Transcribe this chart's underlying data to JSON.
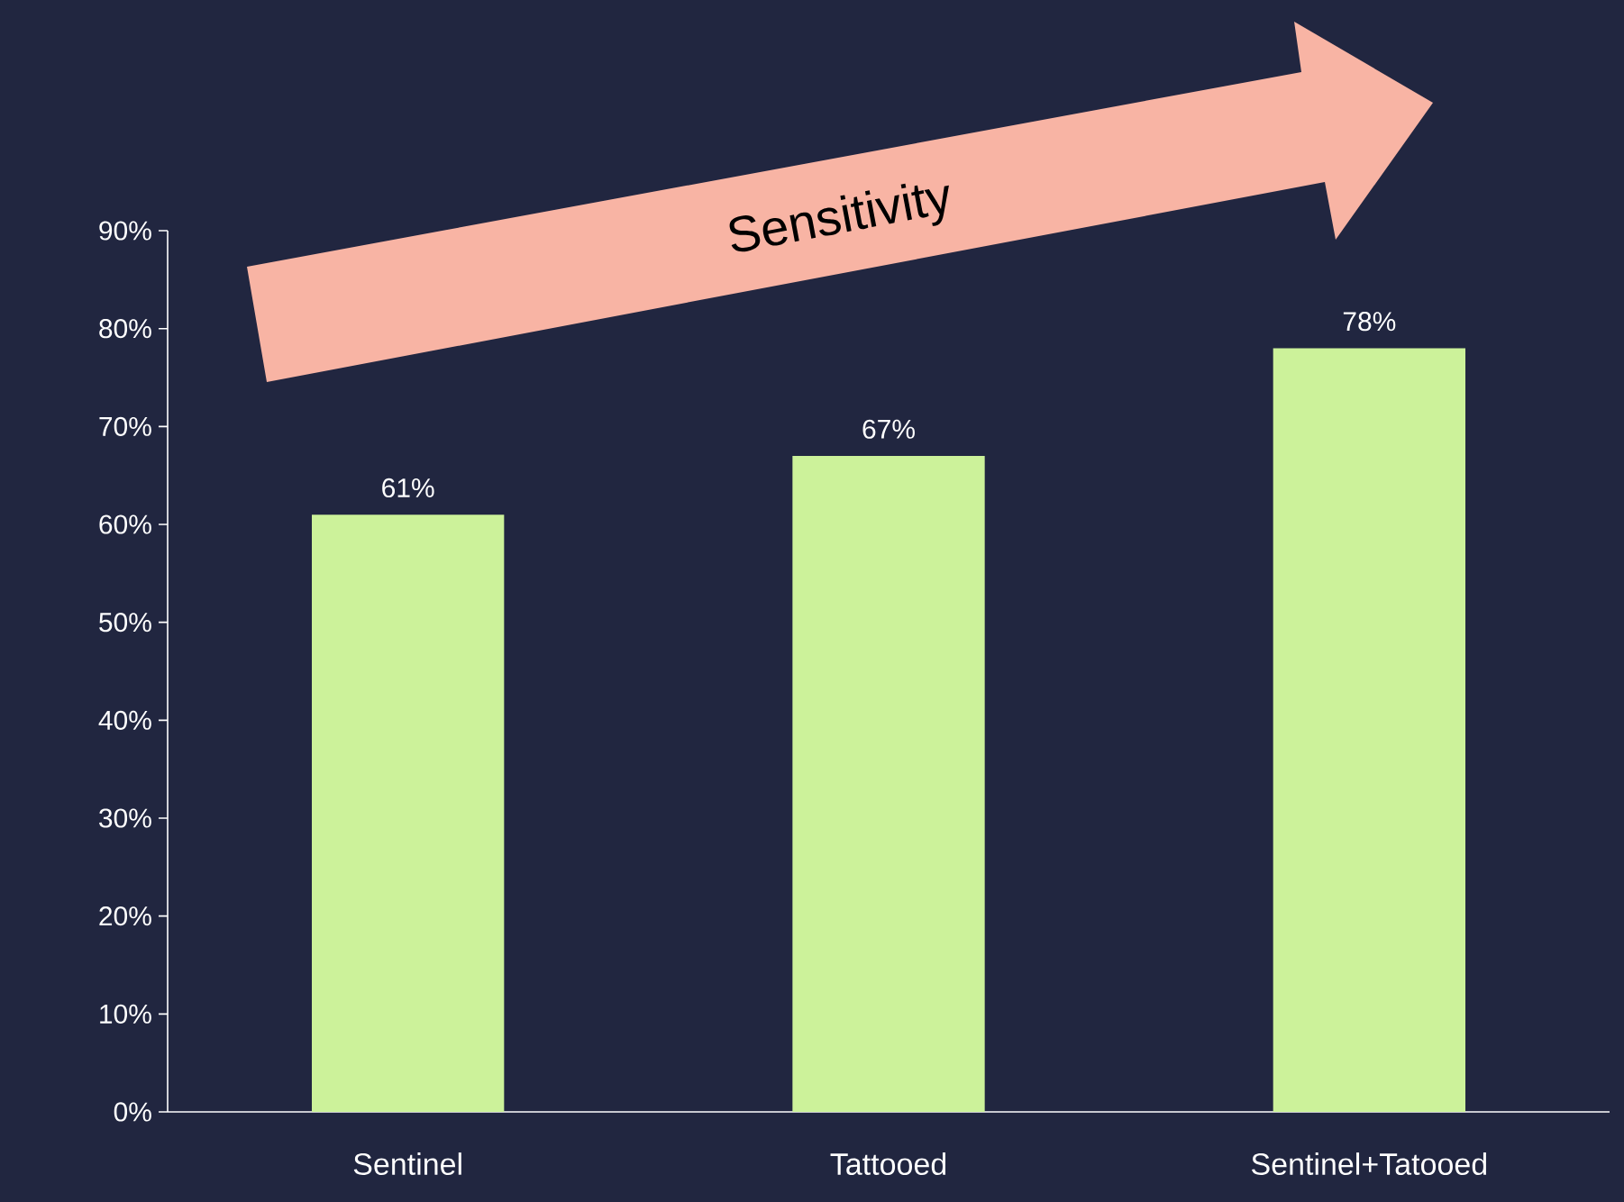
{
  "chart_data": {
    "type": "bar",
    "categories": [
      "Sentinel",
      "Tattooed",
      "Sentinel+Tatooed"
    ],
    "values": [
      61,
      67,
      78
    ],
    "color": "#ccf29a",
    "value_labels": [
      "61%",
      "67%",
      "78%"
    ],
    "ylim": [
      0,
      90
    ],
    "yticks": [
      {
        "value": 0,
        "label": "0%"
      },
      {
        "value": 10,
        "label": "10%"
      },
      {
        "value": 20,
        "label": "20%"
      },
      {
        "value": 30,
        "label": "30%"
      },
      {
        "value": 40,
        "label": "40%"
      },
      {
        "value": 50,
        "label": "50%"
      },
      {
        "value": 60,
        "label": "60%"
      },
      {
        "value": 70,
        "label": "70%"
      },
      {
        "value": 80,
        "label": "80%"
      },
      {
        "value": 90,
        "label": "90%"
      }
    ],
    "annotations": [
      "Sensitivity"
    ]
  }
}
